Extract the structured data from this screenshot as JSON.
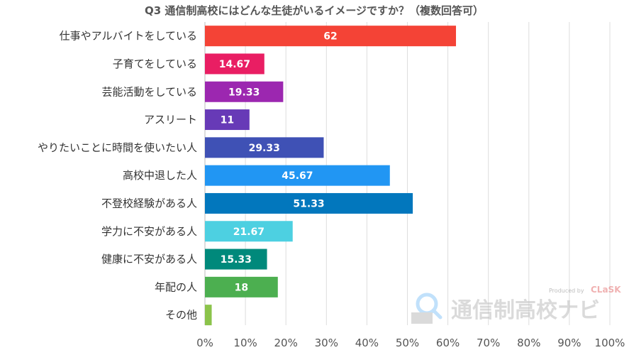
{
  "chart_data": {
    "type": "bar",
    "orientation": "horizontal",
    "title": "Q3 通信制高校にはどんな生徒がいるイメージですか？（複数回答可）",
    "categories": [
      "仕事やアルバイトをしている",
      "子育てをしている",
      "芸能活動をしている",
      "アスリート",
      "やりたいことに時間を使いたい人",
      "高校中退した人",
      "不登校経験がある人",
      "学力に不安がある人",
      "健康に不安がある人",
      "年配の人",
      "その他"
    ],
    "values": [
      62,
      14.67,
      19.33,
      11,
      29.33,
      45.67,
      51.33,
      21.67,
      15.33,
      18,
      1.67
    ],
    "data_labels": [
      "62",
      "14.67",
      "19.33",
      "11",
      "29.33",
      "45.67",
      "51.33",
      "21.67",
      "15.33",
      "18",
      ""
    ],
    "colors": [
      "#f44336",
      "#e91e63",
      "#9c27b0",
      "#673ab7",
      "#3f51b5",
      "#2196f3",
      "#0277bd",
      "#4dd0e1",
      "#00897b",
      "#4caf50",
      "#8bc34a"
    ],
    "xlim": [
      0,
      100
    ],
    "xticks": [
      "0%",
      "10%",
      "20%",
      "30%",
      "40%",
      "50%",
      "60%",
      "70%",
      "80%",
      "90%",
      "100%"
    ],
    "xlabel": "",
    "ylabel": "",
    "grid": true,
    "legend": "none"
  },
  "watermark": {
    "produced_by": "Produced by",
    "brand": "CLaSK",
    "site": "通信制高校ナビ"
  }
}
